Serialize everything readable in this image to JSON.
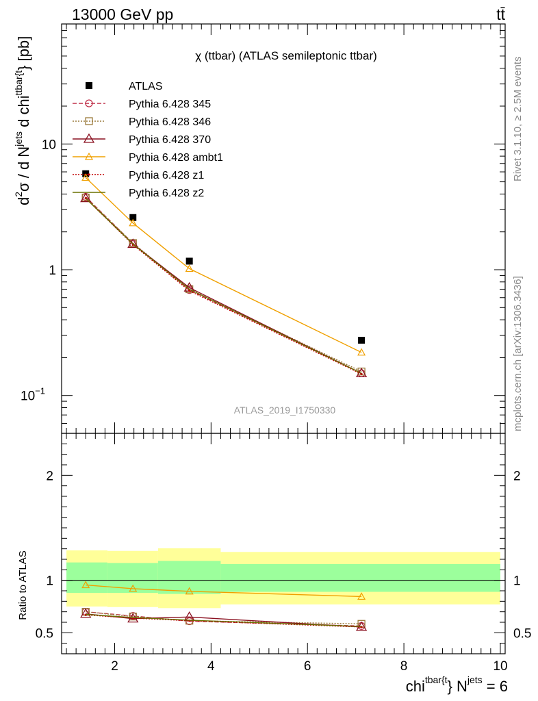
{
  "header": {
    "left_title": "13000 GeV pp",
    "right_title": "tt̄"
  },
  "watermark": {
    "rivet": "Rivet 3.1.10, ≥ 2.5M events",
    "mcplots": "mcplots.cern.ch [arXiv:1306.3436]"
  },
  "colors": {
    "atlas": "#000000",
    "p345": "#c0304a",
    "p346": "#9a7a3a",
    "p370": "#8a1020",
    "ambt1": "#f0a000",
    "z1": "#c00000",
    "z2": "#6a7000",
    "band_inner": "#9cff9c",
    "band_outer": "#ffff99"
  },
  "chart_data": [
    {
      "type": "line",
      "title": "χ (ttbar) (ATLAS semileptonic ttbar)",
      "analysis_id": "ATLAS_2019_I1750330",
      "ylabel": {
        "main": "d",
        "sup1": "2",
        "sigma": "σ / d N",
        "sup2": "jets",
        "mid": " d chi",
        "sup3": "ttbar{t",
        "end": "} [pb]"
      },
      "yscale": "log",
      "ylim": [
        0.05,
        90
      ],
      "xlim": [
        0.9,
        10.1
      ],
      "y_tick_labels": [
        {
          "value": 10,
          "label": "10"
        },
        {
          "value": 1,
          "label": "1"
        },
        {
          "value": 0.1,
          "label": "10",
          "sup": "−1"
        }
      ],
      "legend_position": "top-left",
      "series": [
        {
          "name": "ATLAS",
          "marker": "filled-square",
          "x": [
            1.4,
            2.38,
            3.55,
            7.12
          ],
          "y": [
            5.8,
            2.6,
            1.17,
            0.275
          ]
        },
        {
          "name": "Pythia 6.428 345",
          "marker": "open-circle",
          "dash": "dashed",
          "x": [
            1.4,
            2.38,
            3.55,
            7.12
          ],
          "y": [
            3.8,
            1.62,
            0.69,
            0.15
          ]
        },
        {
          "name": "Pythia 6.428 346",
          "marker": "open-square",
          "dash": "dotted",
          "x": [
            1.4,
            2.38,
            3.55,
            7.12
          ],
          "y": [
            3.75,
            1.63,
            0.7,
            0.155
          ]
        },
        {
          "name": "Pythia 6.428 370",
          "marker": "open-triangle",
          "dash": "solid",
          "x": [
            1.4,
            2.38,
            3.55,
            7.12
          ],
          "y": [
            3.7,
            1.6,
            0.72,
            0.15
          ]
        },
        {
          "name": "Pythia 6.428 ambt1",
          "marker": "open-triangle-small",
          "dash": "solid",
          "x": [
            1.4,
            2.38,
            3.55,
            7.12
          ],
          "y": [
            5.4,
            2.35,
            1.02,
            0.22
          ]
        },
        {
          "name": "Pythia 6.428 z1",
          "marker": "dot",
          "dash": "dotted",
          "x": [
            1.4,
            2.38,
            3.55,
            7.12
          ],
          "y": [
            3.7,
            1.58,
            0.68,
            0.148
          ]
        },
        {
          "name": "Pythia 6.428 z2",
          "marker": "none",
          "dash": "solid",
          "x": [
            1.4,
            2.38,
            3.55,
            7.12
          ],
          "y": [
            3.7,
            1.6,
            0.7,
            0.15
          ]
        }
      ]
    },
    {
      "type": "line",
      "ylabel": "Ratio to ATLAS",
      "xlabel": {
        "main": "chi",
        "sup1": "tbar{t",
        "mid": "} N",
        "sup2": "jets",
        "end": " = 6"
      },
      "xlim": [
        0.9,
        10.1
      ],
      "ylim": [
        0.3,
        2.4
      ],
      "x_ticks": [
        2,
        4,
        6,
        8,
        10
      ],
      "y_ticks": [
        0.5,
        1,
        2
      ],
      "bands": {
        "edges": [
          1.0,
          1.85,
          2.9,
          4.2,
          10.0
        ],
        "inner": [
          [
            0.88,
            1.17
          ],
          [
            0.88,
            1.165
          ],
          [
            0.87,
            1.185
          ],
          [
            0.89,
            1.155
          ]
        ],
        "outer": [
          [
            0.75,
            1.285
          ],
          [
            0.745,
            1.28
          ],
          [
            0.735,
            1.305
          ],
          [
            0.77,
            1.27
          ]
        ]
      },
      "series": [
        {
          "name": "Pythia 6.428 345",
          "x": [
            1.4,
            2.38,
            3.55,
            7.12
          ],
          "y": [
            0.7,
            0.66,
            0.61,
            0.565
          ]
        },
        {
          "name": "Pythia 6.428 346",
          "x": [
            1.4,
            2.38,
            3.55,
            7.12
          ],
          "y": [
            0.7,
            0.655,
            0.615,
            0.585
          ]
        },
        {
          "name": "Pythia 6.428 370",
          "x": [
            1.4,
            2.38,
            3.55,
            7.12
          ],
          "y": [
            0.68,
            0.635,
            0.65,
            0.555
          ]
        },
        {
          "name": "Pythia 6.428 ambt1",
          "x": [
            1.4,
            2.38,
            3.55,
            7.12
          ],
          "y": [
            0.955,
            0.92,
            0.895,
            0.845
          ]
        },
        {
          "name": "Pythia 6.428 z1",
          "x": [
            1.4,
            2.38,
            3.55,
            7.12
          ],
          "y": [
            0.67,
            0.64,
            0.615,
            0.555
          ]
        },
        {
          "name": "Pythia 6.428 z2",
          "x": [
            1.4,
            2.38,
            3.55,
            7.12
          ],
          "y": [
            0.675,
            0.645,
            0.62,
            0.56
          ]
        }
      ]
    }
  ]
}
